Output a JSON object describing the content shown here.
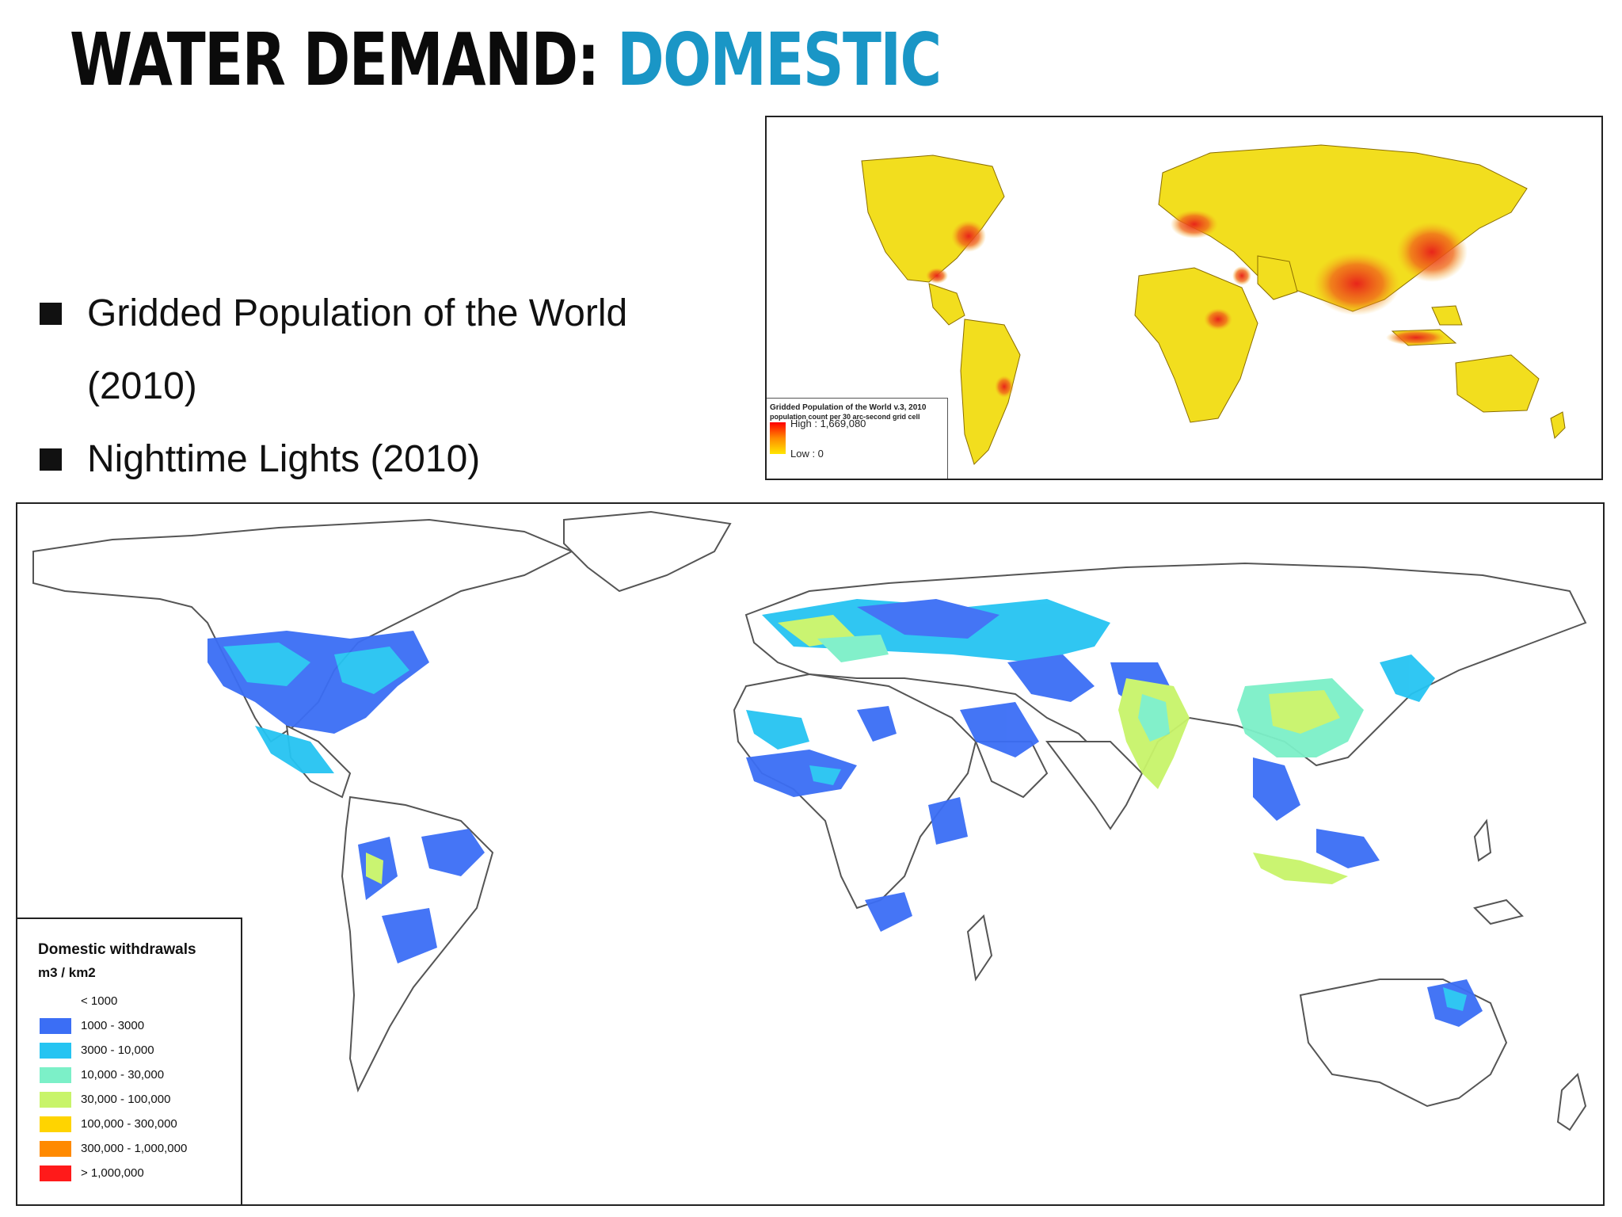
{
  "slide": {
    "title_main": "WATER DEMAND:",
    "title_accent": "DOMESTIC",
    "bullets": [
      "Gridded Population of the World (2010)",
      "Nighttime Lights (2010)"
    ]
  },
  "population_map": {
    "legend_title": "Gridded Population of the World v.3, 2010",
    "legend_subtitle": "population count per 30 arc-second grid cell",
    "high_label": "High : 1,669,080",
    "low_label": "Low : 0"
  },
  "withdrawals_map": {
    "legend_title": "Domestic withdrawals",
    "legend_unit": "m3 / km2",
    "classes": [
      {
        "label": "< 1000",
        "color": "#ffffff"
      },
      {
        "label": "1000 - 3000",
        "color": "#3b6ef5"
      },
      {
        "label": "3000 - 10,000",
        "color": "#25c4f2"
      },
      {
        "label": "10,000 - 30,000",
        "color": "#7cf0c8"
      },
      {
        "label": "30,000 - 100,000",
        "color": "#c8f46a"
      },
      {
        "label": "100,000 - 300,000",
        "color": "#ffd400"
      },
      {
        "label": "300,000 - 1,000,000",
        "color": "#ff8a00"
      },
      {
        "label": "> 1,000,000",
        "color": "#ff1a1a"
      }
    ]
  },
  "colors": {
    "title_accent": "#1a96c6",
    "land_low": "#f2df1c",
    "land_high": "#e03a14",
    "coast": "#555555"
  }
}
